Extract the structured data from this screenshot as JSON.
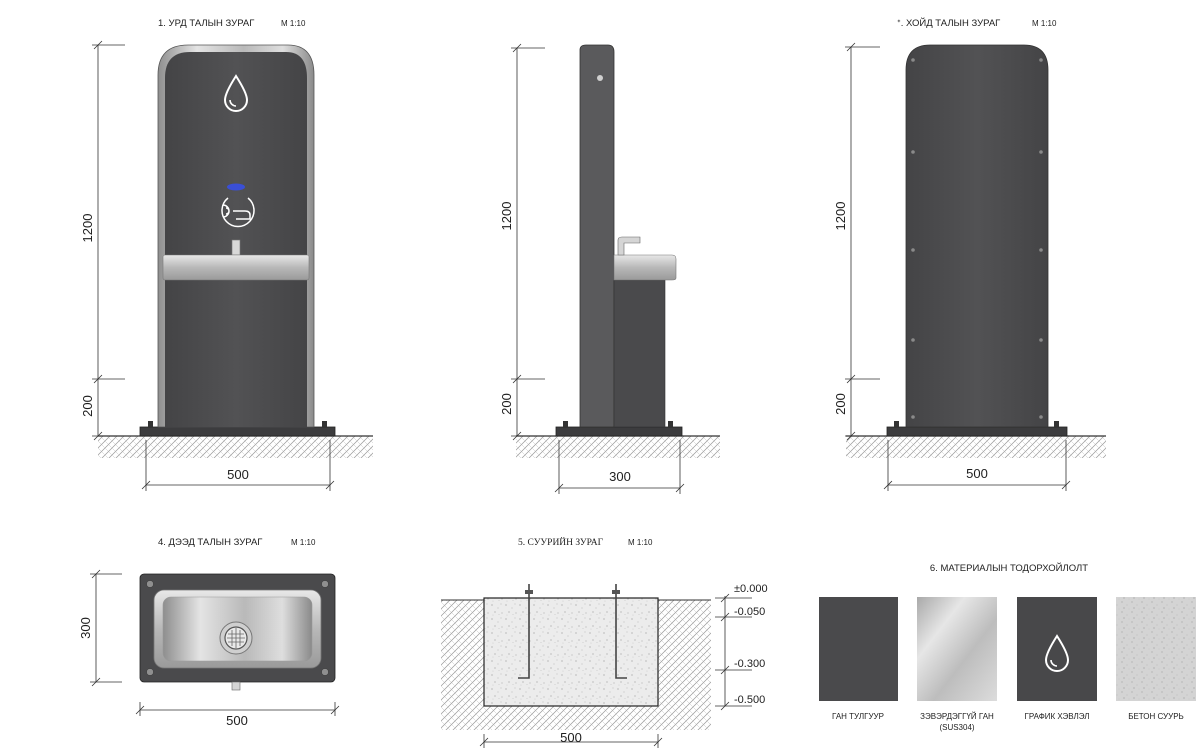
{
  "views": {
    "front": {
      "title": "1. УРД ТАЛЫН ЗУРАГ",
      "scale": "М 1:10",
      "dim_height_main": "1200",
      "dim_height_base": "200",
      "dim_width": "500"
    },
    "side": {
      "dim_height_main": "1200",
      "dim_height_base": "200",
      "dim_width": "300"
    },
    "back": {
      "title": "ᐩ. ХОЙД ТАЛЫН ЗУРАГ",
      "scale": "М 1:10",
      "dim_height_main": "1200",
      "dim_height_base": "200",
      "dim_width": "500"
    },
    "top": {
      "title": "4. ДЭЭД ТАЛЫН ЗУРАГ",
      "scale": "М 1:10",
      "dim_depth": "300",
      "dim_width": "500"
    },
    "foundation": {
      "title": "5.   СУУРИЙН ЗУРАГ",
      "scale": "М 1:10",
      "dim_width": "500",
      "levels": [
        "±0.000",
        "-0.050",
        "-0.300",
        "-0.500"
      ]
    }
  },
  "materials": {
    "title": "6. МАТЕРИАЛЫН ТОДОРХОЙЛОЛТ",
    "items": [
      {
        "label": "ГАН ТУЛГУУР",
        "label2": "",
        "color": "#4a4a4c"
      },
      {
        "label": "ЗЭВЭРДЭГГҮЙ ГАН",
        "label2": "(SUS304)",
        "color": "#c9c9c9"
      },
      {
        "label": "ГРАФИК ХЭВЛЭЛ",
        "label2": "",
        "color": "#48484a"
      },
      {
        "label": "БЕТОН СУУРЬ",
        "label2": "",
        "color": "#d3d3d3"
      }
    ]
  },
  "colors": {
    "panel": "#4b4b4d",
    "steel": "#cfcfcf",
    "accent": "#3a4fd6",
    "concrete": "#e6e6e6"
  }
}
